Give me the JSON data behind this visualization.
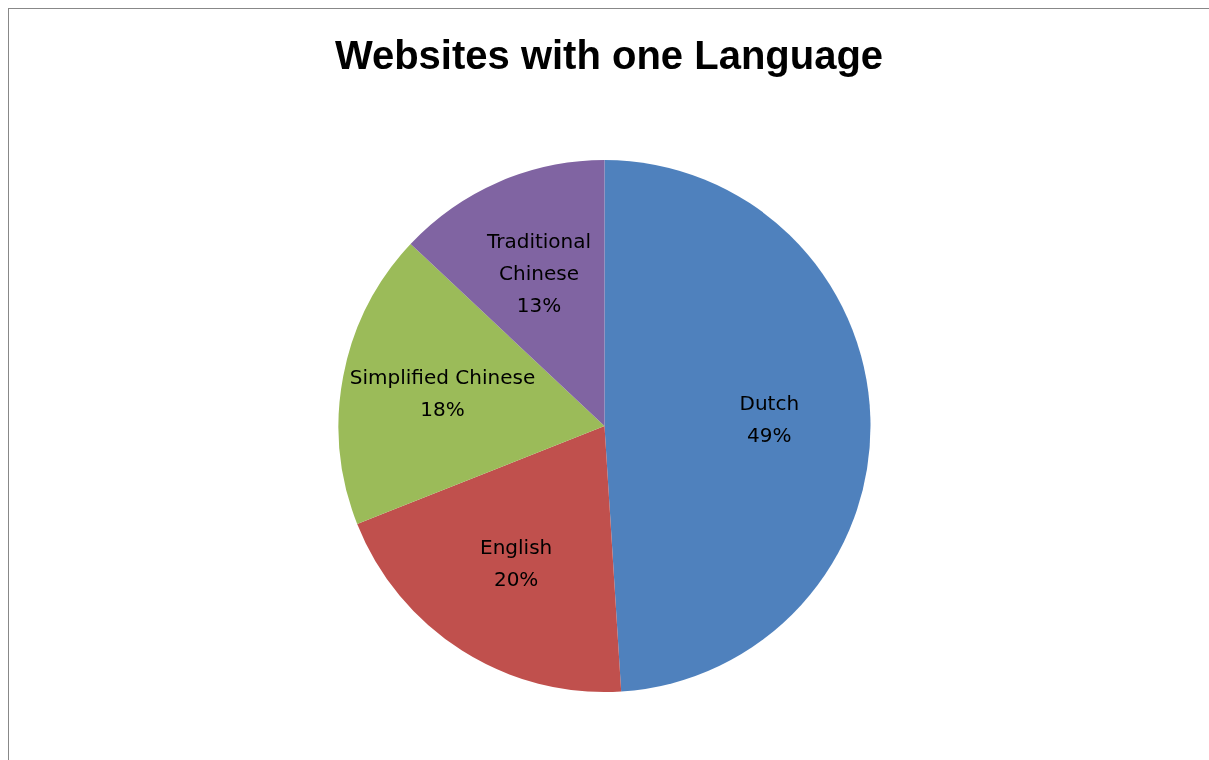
{
  "chart_data": {
    "type": "pie",
    "title": "Websites with one Language",
    "categories": [
      "Dutch",
      "English",
      "Simplified Chinese",
      "Traditional Chinese"
    ],
    "values": [
      49,
      20,
      18,
      13
    ],
    "colors": [
      "#4f81bd",
      "#c0504d",
      "#9bbb59",
      "#8064a2"
    ],
    "value_labels": [
      "49%",
      "20%",
      "18%",
      "13%"
    ],
    "legend": false
  }
}
